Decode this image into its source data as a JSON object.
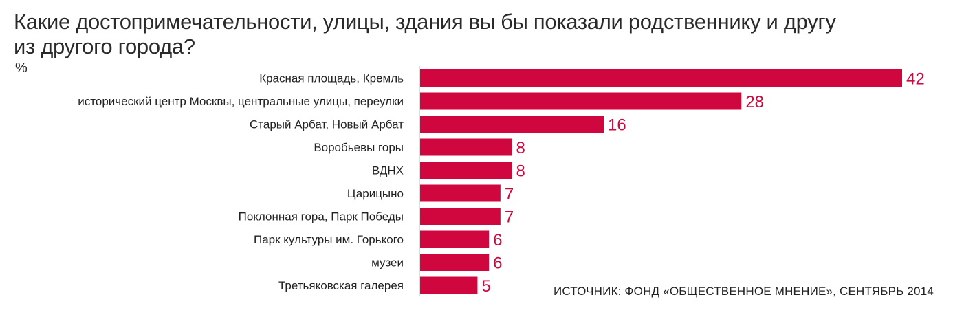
{
  "title": "Какие достопримечательности, улицы, здания вы бы показали родственнику и другу из другого города?",
  "unit": "%",
  "source": "ИСТОЧНИК: ФОНД «ОБЩЕСТВЕННОЕ МНЕНИЕ», СЕНТЯБРЬ 2014",
  "colors": {
    "bar": "#d0073f",
    "value_label": "#d0073f",
    "category_label": "#222222"
  },
  "chart_data": {
    "type": "bar",
    "orientation": "horizontal",
    "categories": [
      "Красная площадь, Кремль",
      "исторический центр Москвы, центральные улицы, переулки",
      "Старый Арбат, Новый Арбат",
      "Воробьевы горы",
      "ВДНХ",
      "Царицыно",
      "Поклонная гора, Парк Победы",
      "Парк культуры им. Горького",
      "музеи",
      "Третьяковская галерея"
    ],
    "values": [
      42,
      28,
      16,
      8,
      8,
      7,
      7,
      6,
      6,
      5
    ],
    "title": "Какие достопримечательности, улицы, здания вы бы показали родственнику и другу из другого города?",
    "xlabel": "",
    "ylabel": "",
    "xlim": [
      0,
      42
    ],
    "grid": false,
    "legend": "none"
  }
}
